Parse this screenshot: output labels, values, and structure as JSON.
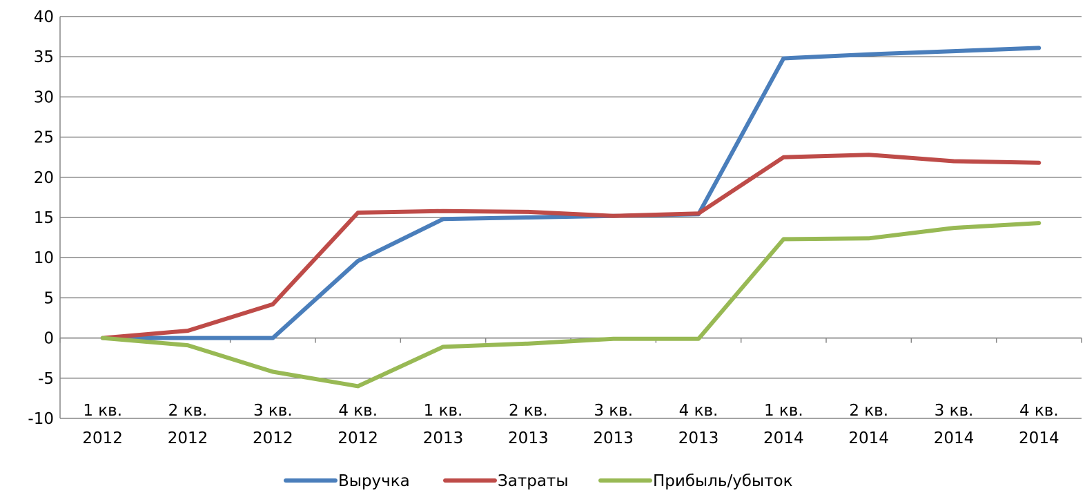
{
  "chart_data": {
    "type": "line",
    "categories": [
      [
        "1 кв.",
        "2012"
      ],
      [
        "2 кв.",
        "2012"
      ],
      [
        "3 кв.",
        "2012"
      ],
      [
        "4 кв.",
        "2012"
      ],
      [
        "1 кв.",
        "2013"
      ],
      [
        "2 кв.",
        "2013"
      ],
      [
        "3 кв.",
        "2013"
      ],
      [
        "4 кв.",
        "2013"
      ],
      [
        "1 кв.",
        "2014"
      ],
      [
        "2 кв.",
        "2014"
      ],
      [
        "3 кв.",
        "2014"
      ],
      [
        "4 кв.",
        "2014"
      ]
    ],
    "series": [
      {
        "name": "Выручка",
        "color": "#4a7ebb",
        "values": [
          0,
          0,
          0,
          9.6,
          14.8,
          15.0,
          15.2,
          15.4,
          34.8,
          35.3,
          35.7,
          36.1
        ]
      },
      {
        "name": "Затраты",
        "color": "#be4b48",
        "values": [
          0,
          0.9,
          4.2,
          15.6,
          15.8,
          15.7,
          15.2,
          15.5,
          22.5,
          22.8,
          22.0,
          21.8
        ]
      },
      {
        "name": "Прибыль/убыток",
        "color": "#98b954",
        "values": [
          0,
          -0.9,
          -4.2,
          -6.0,
          -1.1,
          -0.7,
          -0.1,
          -0.1,
          12.3,
          12.4,
          13.7,
          14.3
        ]
      }
    ],
    "y_ticks": [
      -10,
      -5,
      0,
      5,
      10,
      15,
      20,
      25,
      30,
      35,
      40
    ],
    "ylim": [
      -10,
      40
    ],
    "grid": true,
    "legend_position": "bottom",
    "title": "",
    "xlabel": "",
    "ylabel": ""
  }
}
